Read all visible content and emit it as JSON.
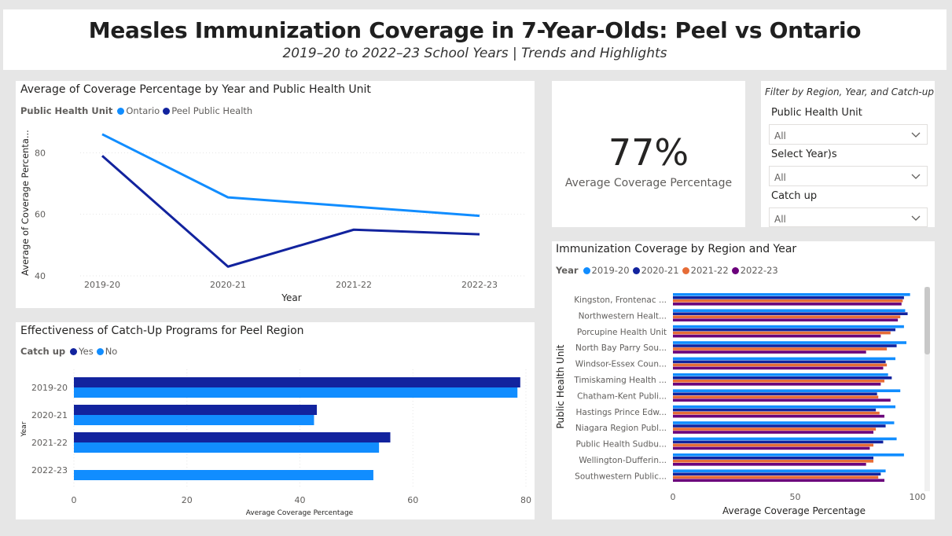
{
  "header": {
    "title": "Measles Immunization Coverage in 7-Year-Olds: Peel vs Ontario",
    "subtitle": "2019–20 to 2022–23 School Years | Trends and Highlights"
  },
  "colors": {
    "ontario": "#118DFF",
    "peel": "#12239E",
    "yes": "#12239E",
    "no": "#118DFF",
    "y2019": "#118DFF",
    "y2020": "#12239E",
    "y2021": "#E66C37",
    "y2022": "#6B007B"
  },
  "line_visual": {
    "title": "Average of Coverage Percentage by Year and Public Health Unit",
    "legend_title": "Public Health Unit",
    "legend": [
      "Ontario",
      "Peel Public Health"
    ],
    "xlabel": "Year",
    "ylabel": "Average of Coverage Percenta..."
  },
  "kpi": {
    "value": "77%",
    "label": "Average Coverage Percentage"
  },
  "filters": {
    "header": "Filter by Region, Year, and Catch-up",
    "slicers": [
      {
        "label": "Public Health Unit",
        "value": "All"
      },
      {
        "label": "Select Year)s",
        "value": "All"
      },
      {
        "label": "Catch up",
        "value": "All"
      }
    ]
  },
  "catchup_visual": {
    "title": "Effectiveness of Catch-Up Programs for Peel Region",
    "legend_title": "Catch up",
    "legend": [
      "Yes",
      "No"
    ],
    "xlabel": "Average Coverage Percentage",
    "ylabel": "Year"
  },
  "region_visual": {
    "title": "Immunization Coverage by Region and Year",
    "legend_title": "Year",
    "legend": [
      "2019-20",
      "2020-21",
      "2021-22",
      "2022-23"
    ],
    "xlabel": "Average Coverage Percentage",
    "ylabel": "Public Health Unit"
  },
  "chart_data": [
    {
      "type": "line",
      "title": "Average of Coverage Percentage by Year and Public Health Unit",
      "xlabel": "Year",
      "ylabel": "Average of Coverage Percenta...",
      "x": [
        "2019-20",
        "2020-21",
        "2021-22",
        "2022-23"
      ],
      "yticks": [
        40,
        60,
        80
      ],
      "ylim": [
        40,
        88
      ],
      "grid": true,
      "legend_position": "top-left",
      "series": [
        {
          "name": "Ontario",
          "values": [
            86,
            65.5,
            62.5,
            59.5
          ]
        },
        {
          "name": "Peel Public Health",
          "values": [
            79,
            43,
            55,
            53.5
          ]
        }
      ]
    },
    {
      "type": "bar",
      "orientation": "horizontal",
      "title": "Effectiveness of Catch-Up Programs for Peel Region",
      "xlabel": "Average Coverage Percentage",
      "ylabel": "Year",
      "categories": [
        "2019-20",
        "2020-21",
        "2021-22",
        "2022-23"
      ],
      "xticks": [
        0,
        20,
        40,
        60,
        80
      ],
      "xlim": [
        0,
        80
      ],
      "legend_position": "top-left",
      "series": [
        {
          "name": "Yes",
          "values": [
            79,
            43,
            56,
            null
          ]
        },
        {
          "name": "No",
          "values": [
            78.5,
            42.5,
            54,
            53
          ]
        }
      ]
    },
    {
      "type": "bar",
      "orientation": "horizontal",
      "title": "Immunization Coverage by Region and Year",
      "xlabel": "Average Coverage Percentage",
      "ylabel": "Public Health Unit",
      "categories": [
        "Kingston, Frontenac ...",
        "Northwestern Healt...",
        "Porcupine Health Unit",
        "North Bay Parry Sou...",
        "Windsor-Essex Coun...",
        "Timiskaming Health ...",
        "Chatham-Kent Publi...",
        "Hastings Prince Edw...",
        "Niagara Region Publ...",
        "Public Health Sudbu...",
        "Wellington-Dufferin...",
        "Southwestern Public..."
      ],
      "xticks": [
        0,
        50,
        100
      ],
      "xlim": [
        0,
        100
      ],
      "legend_position": "top-left",
      "series": [
        {
          "name": "2019-20",
          "values": [
            97,
            95,
            94.5,
            95.5,
            91,
            88,
            93,
            91,
            90.5,
            91.5,
            94.5,
            87
          ]
        },
        {
          "name": "2020-21",
          "values": [
            94.5,
            96,
            91,
            91.5,
            87,
            89.5,
            83.5,
            83,
            87,
            86,
            82,
            85
          ]
        },
        {
          "name": "2021-22",
          "values": [
            94,
            93,
            89,
            87.5,
            87.5,
            86.5,
            84,
            84.5,
            83,
            82,
            82,
            84
          ]
        },
        {
          "name": "2022-23",
          "values": [
            93.5,
            92,
            85,
            79,
            86,
            85,
            89,
            86.5,
            82,
            80.5,
            79,
            86.5
          ]
        }
      ]
    }
  ]
}
